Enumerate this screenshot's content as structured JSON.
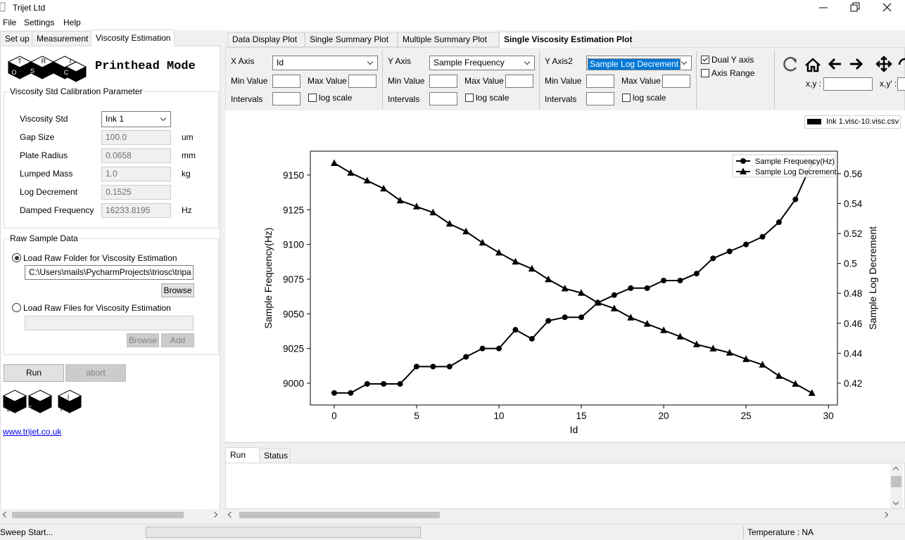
{
  "window": {
    "title": "Trijet Ltd"
  },
  "menu": [
    "File",
    "Settings",
    "Help"
  ],
  "left_tabs": [
    "Set up",
    "Measurement",
    "Viscosity Estimation"
  ],
  "mode_title": "Printhead Mode",
  "logos": {
    "top": [
      "T",
      "O",
      "S",
      "R",
      "C",
      "I"
    ],
    "bottom": [
      "T",
      "J",
      "E",
      "R",
      "I",
      "T"
    ]
  },
  "calibration": {
    "title": "Viscosity Std Calibration Parameter",
    "rows": [
      {
        "label": "Viscosity Std",
        "value": "Ink 1"
      },
      {
        "label": "Gap Size",
        "value": "100.0",
        "unit": "um"
      },
      {
        "label": "Plate Radius",
        "value": "0.0658",
        "unit": "mm"
      },
      {
        "label": "Lumped Mass",
        "value": "1.0",
        "unit": "kg"
      },
      {
        "label": "Log Decrement",
        "value": "0.1525"
      },
      {
        "label": "Damped Frequency",
        "value": "16233.8195",
        "unit": "Hz"
      }
    ]
  },
  "raw_data": {
    "title": "Raw Sample Data",
    "folder_option": "Load Raw Folder for Viscosity Estimation",
    "folder_path": "C:\\Users\\mails\\PycharmProjects\\triosc\\tripa",
    "folder_browse": "Browse",
    "files_option": "Load Raw Files for Viscosity Estimation",
    "files_browse": "Browse",
    "add": "Add"
  },
  "buttons": {
    "run": "Run",
    "abort": "abort"
  },
  "link": "www.trijet.co.uk",
  "plot_tabs": [
    "Data Display Plot",
    "Single Summary Plot",
    "Multiple Summary Plot",
    "Single Viscosity Estimation Plot"
  ],
  "axis_controls": [
    {
      "label": "X Axis",
      "selection": "Id"
    },
    {
      "label": "Y Axis",
      "selection": "Sample Frequency"
    },
    {
      "label": "Y Axis2",
      "selection": "Sample Log Decrement"
    }
  ],
  "field_labels": {
    "min": "Min Value",
    "max": "Max Value",
    "intervals": "Intervals",
    "log": "log scale"
  },
  "options": {
    "dual_y": "Dual Y axis",
    "axis_range": "Axis Range"
  },
  "coords": {
    "xy": "x,y :",
    "xy2": "x,y' :"
  },
  "file_legend": "Ink 1.visc-10.visc.csv",
  "chart_data": {
    "type": "line",
    "xlabel": "Id",
    "ylabel": "Sample Frequency(Hz)",
    "y2label": "Sample Log Decrement",
    "x": [
      0,
      1,
      2,
      3,
      4,
      5,
      6,
      7,
      8,
      9,
      10,
      11,
      12,
      13,
      14,
      15,
      16,
      17,
      18,
      19,
      20,
      21,
      22,
      23,
      24,
      25,
      26,
      27,
      28,
      29
    ],
    "series": [
      {
        "name": "Sample Frequency(Hz)",
        "color": "#000000",
        "marker": "circle",
        "values": [
          8993,
          8993,
          8999.5,
          8999.5,
          8999.5,
          9012,
          9012,
          9012,
          9019,
          9025,
          9025,
          9038.5,
          9032,
          9045,
          9047.5,
          9047.5,
          9058,
          9063.5,
          9068.5,
          9068.5,
          9074,
          9074,
          9079,
          9090,
          9095,
          9100,
          9105.5,
          9116,
          9132.5,
          9158.5
        ]
      },
      {
        "name": "Sample Log Decrement",
        "color": "#000000",
        "marker": "triangle",
        "axis": "y2",
        "values": [
          0.567,
          0.5605,
          0.5553,
          0.55,
          0.542,
          0.538,
          0.534,
          0.5265,
          0.5213,
          0.5138,
          0.5072,
          0.5011,
          0.4964,
          0.4893,
          0.4832,
          0.4803,
          0.4737,
          0.4699,
          0.4638,
          0.4596,
          0.4553,
          0.4511,
          0.4459,
          0.4431,
          0.4403,
          0.436,
          0.4323,
          0.4248,
          0.4195,
          0.4134
        ]
      }
    ],
    "xlim": [
      -1.45,
      30.55
    ],
    "xticks": [
      0,
      5,
      10,
      15,
      20,
      25,
      30
    ],
    "ylim": [
      8984.3,
      9167.2
    ],
    "yticks": [
      9000,
      9025,
      9050,
      9075,
      9100,
      9125,
      9150
    ],
    "y2lim": [
      0.4054,
      0.575
    ],
    "y2ticks": [
      0.42,
      0.44,
      0.46,
      0.48,
      0.5,
      0.52,
      0.54,
      0.56
    ],
    "grid": false,
    "legend": "upper right"
  },
  "bottom_tabs": [
    "Run",
    "Status"
  ],
  "status": {
    "message": "Sweep Start...",
    "temperature": "Temperature : NA"
  }
}
